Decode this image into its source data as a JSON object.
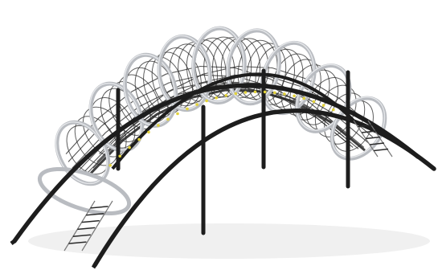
{
  "scene": {
    "subject": "",
    "colors": {
      "background": "#ffffff",
      "frame": "#1d1d1d",
      "rings": "#b9bcc1",
      "ring_highlight": "#e3e5e8",
      "net": "#2a2a2a",
      "clips": "#e2d23a",
      "ground_shadow": "#f0f0f0"
    }
  }
}
